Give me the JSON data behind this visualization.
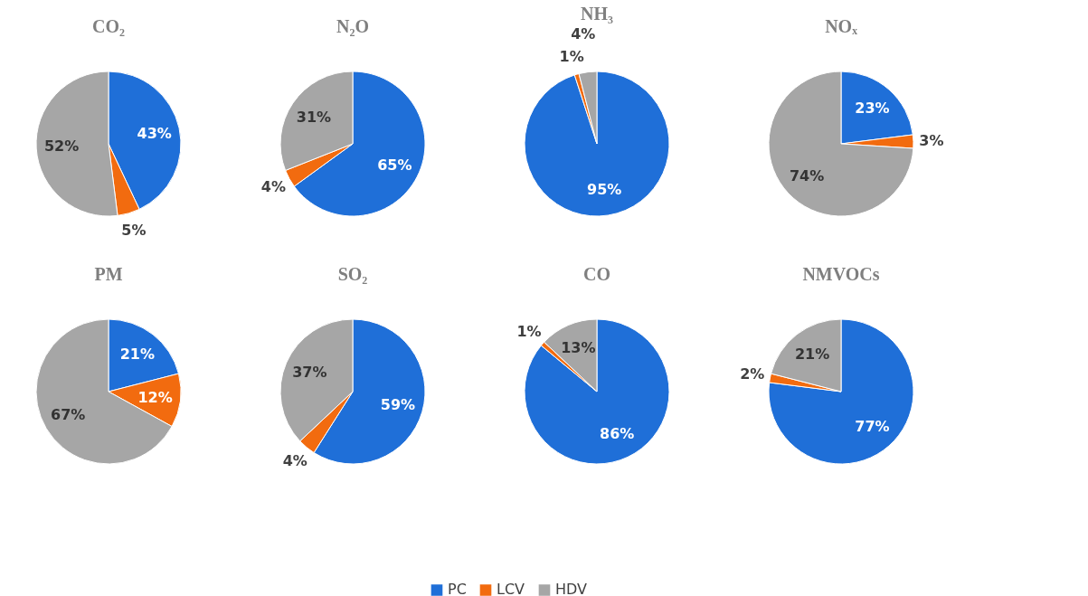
{
  "chart_data": [
    {
      "type": "pie",
      "title": "CO₂",
      "categories": [
        "PC",
        "LCV",
        "HDV"
      ],
      "values": [
        43,
        5,
        52
      ],
      "colors": [
        "#1f6fd8",
        "#f26b0f",
        "#a6a6a6"
      ],
      "value_labels": [
        "43%",
        "5%",
        "52%"
      ],
      "legend": "bottom"
    },
    {
      "type": "pie",
      "title": "N₂O",
      "categories": [
        null,
        null,
        null
      ],
      "values": [
        65,
        4,
        31
      ],
      "colors": [
        "#1f6fd8",
        "#f26b0f",
        "#a6a6a6"
      ],
      "value_labels": [
        "65%",
        "4%",
        "31%"
      ]
    },
    {
      "type": "pie",
      "title": "NH₃",
      "categories": [
        null,
        null,
        null
      ],
      "values": [
        95,
        1,
        4
      ],
      "colors": [
        "#1f6fd8",
        "#f26b0f",
        "#a6a6a6"
      ],
      "value_labels": [
        "95%",
        "1%",
        "4%"
      ]
    },
    {
      "type": "pie",
      "title": "NOₓ",
      "categories": [
        null,
        null,
        null
      ],
      "values": [
        23,
        3,
        74
      ],
      "colors": [
        "#1f6fd8",
        "#f26b0f",
        "#a6a6a6"
      ],
      "value_labels": [
        "23%",
        "3%",
        "74%"
      ]
    },
    {
      "type": "pie",
      "title": "PM",
      "categories": [
        null,
        null,
        null
      ],
      "values": [
        21,
        12,
        67
      ],
      "colors": [
        "#1f6fd8",
        "#f26b0f",
        "#a6a6a6"
      ],
      "value_labels": [
        "21%",
        "12%",
        "67%"
      ]
    },
    {
      "type": "pie",
      "title": "SO₂",
      "categories": [
        null,
        null,
        null
      ],
      "values": [
        59,
        4,
        37
      ],
      "colors": [
        "#1f6fd8",
        "#f26b0f",
        "#a6a6a6"
      ],
      "value_labels": [
        "59%",
        "4%",
        "37%"
      ]
    },
    {
      "type": "pie",
      "title": "CO",
      "categories": [
        null,
        null,
        null
      ],
      "values": [
        86,
        1,
        13
      ],
      "colors": [
        "#1f6fd8",
        "#f26b0f",
        "#a6a6a6"
      ],
      "value_labels": [
        "86%",
        "1%",
        "13%"
      ]
    },
    {
      "type": "pie",
      "title": "NMVOCs",
      "categories": [
        null,
        null,
        null
      ],
      "values": [
        77,
        2,
        21
      ],
      "colors": [
        "#1f6fd8",
        "#f26b0f",
        "#a6a6a6"
      ],
      "value_labels": [
        "77%",
        "2%",
        "21%"
      ]
    }
  ]
}
